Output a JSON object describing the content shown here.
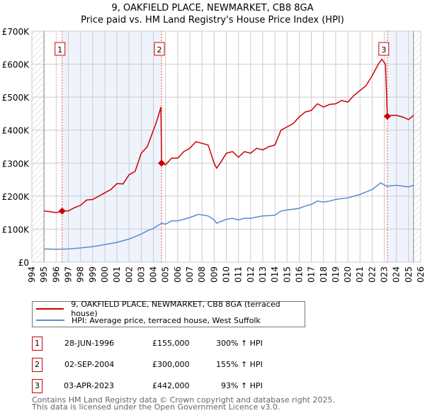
{
  "chart_data": {
    "type": "line",
    "title": "9, OAKFIELD PLACE, NEWMARKET, CB8 8GA",
    "subtitle": "Price paid vs. HM Land Registry's House Price Index (HPI)",
    "xlim": [
      1994,
      2026
    ],
    "ylim": [
      0,
      700000
    ],
    "y_ticks": [
      {
        "v": 0,
        "label": "£0"
      },
      {
        "v": 100000,
        "label": "£100K"
      },
      {
        "v": 200000,
        "label": "£200K"
      },
      {
        "v": 300000,
        "label": "£300K"
      },
      {
        "v": 400000,
        "label": "£400K"
      },
      {
        "v": 500000,
        "label": "£500K"
      },
      {
        "v": 600000,
        "label": "£600K"
      },
      {
        "v": 700000,
        "label": "£700K"
      }
    ],
    "x_ticks": [
      "1994",
      "1995",
      "1996",
      "1997",
      "1998",
      "1999",
      "2000",
      "2001",
      "2002",
      "2003",
      "2004",
      "2005",
      "2006",
      "2007",
      "2008",
      "2009",
      "2010",
      "2011",
      "2012",
      "2013",
      "2014",
      "2015",
      "2016",
      "2017",
      "2018",
      "2019",
      "2020",
      "2021",
      "2022",
      "2023",
      "2024",
      "2025",
      "2026"
    ],
    "grid": true,
    "colors": {
      "property": "#cc0000",
      "hpi": "#5b8bd0",
      "shade": "#eef3fc"
    },
    "data_range": [
      1995,
      2025.4
    ],
    "series": [
      {
        "name": "9, OAKFIELD PLACE, NEWMARKET, CB8 8GA (terraced house)",
        "color": "#cc0000",
        "x": [
          1995,
          1995.5,
          1996,
          1996.5,
          1997,
          1997.5,
          1998,
          1998.5,
          1999,
          1999.5,
          2000,
          2000.5,
          2001,
          2001.5,
          2002,
          2002.5,
          2003,
          2003.5,
          2004,
          2004.3,
          2004.62,
          2004.67,
          2005,
          2005.5,
          2006,
          2006.5,
          2007,
          2007.5,
          2008,
          2008.5,
          2009,
          2009.2,
          2009.5,
          2010,
          2010.5,
          2011,
          2011.5,
          2012,
          2012.5,
          2013,
          2013.5,
          2014,
          2014.5,
          2015,
          2015.5,
          2016,
          2016.5,
          2017,
          2017.5,
          2018,
          2018.5,
          2019,
          2019.5,
          2020,
          2020.5,
          2021,
          2021.5,
          2022,
          2022.5,
          2022.8,
          2023.1,
          2023.25,
          2023.6,
          2024,
          2024.5,
          2025,
          2025.4
        ],
        "y": [
          155000,
          153000,
          150000,
          155000,
          155000,
          165000,
          172000,
          188000,
          190000,
          200000,
          210000,
          220000,
          238000,
          237000,
          265000,
          275000,
          330000,
          350000,
          400000,
          430000,
          470000,
          300000,
          295000,
          315000,
          315000,
          335000,
          345000,
          365000,
          360000,
          355000,
          300000,
          285000,
          300000,
          330000,
          335000,
          318000,
          335000,
          330000,
          345000,
          340000,
          350000,
          355000,
          400000,
          410000,
          420000,
          440000,
          455000,
          460000,
          480000,
          470000,
          478000,
          480000,
          490000,
          485000,
          505000,
          520000,
          535000,
          565000,
          600000,
          615000,
          600000,
          442000,
          445000,
          445000,
          440000,
          432000,
          445000
        ]
      },
      {
        "name": "HPI: Average price, terraced house, West Suffolk",
        "color": "#5b8bd0",
        "x": [
          1995,
          1996,
          1997,
          1998,
          1999,
          2000,
          2001,
          2002,
          2003,
          2003.5,
          2004,
          2004.67,
          2005,
          2005.5,
          2006,
          2007,
          2007.7,
          2008.5,
          2009,
          2009.2,
          2010,
          2010.5,
          2011,
          2011.5,
          2012,
          2013,
          2014,
          2014.5,
          2015,
          2016,
          2016.5,
          2017,
          2017.5,
          2018,
          2018.5,
          2019,
          2020,
          2021,
          2022,
          2022.7,
          2023.2,
          2024,
          2025,
          2025.4
        ],
        "y": [
          40000,
          39000,
          40000,
          43000,
          47000,
          53000,
          60000,
          70000,
          85000,
          95000,
          102000,
          118000,
          115000,
          125000,
          125000,
          135000,
          145000,
          140000,
          128000,
          118000,
          130000,
          133000,
          128000,
          133000,
          133000,
          140000,
          142000,
          155000,
          158000,
          163000,
          170000,
          175000,
          185000,
          182000,
          185000,
          190000,
          195000,
          205000,
          220000,
          240000,
          230000,
          233000,
          228000,
          233000
        ]
      }
    ],
    "sales": [
      {
        "num": "1",
        "x": 1996.49,
        "y": 155000,
        "date": "28-JUN-1996",
        "price": "£155,000",
        "hpi": "300% ↑ HPI"
      },
      {
        "num": "2",
        "x": 2004.67,
        "y": 300000,
        "date": "02-SEP-2004",
        "price": "£300,000",
        "hpi": "155% ↑ HPI"
      },
      {
        "num": "3",
        "x": 2023.25,
        "y": 442000,
        "date": "03-APR-2023",
        "price": "£442,000",
        "hpi": "93% ↑ HPI"
      }
    ]
  },
  "legend": {
    "property": "9, OAKFIELD PLACE, NEWMARKET, CB8 8GA (terraced house)",
    "hpi": "HPI: Average price, terraced house, West Suffolk"
  },
  "footer": {
    "line1": "Contains HM Land Registry data © Crown copyright and database right 2025.",
    "line2": "This data is licensed under the Open Government Licence v3.0."
  }
}
